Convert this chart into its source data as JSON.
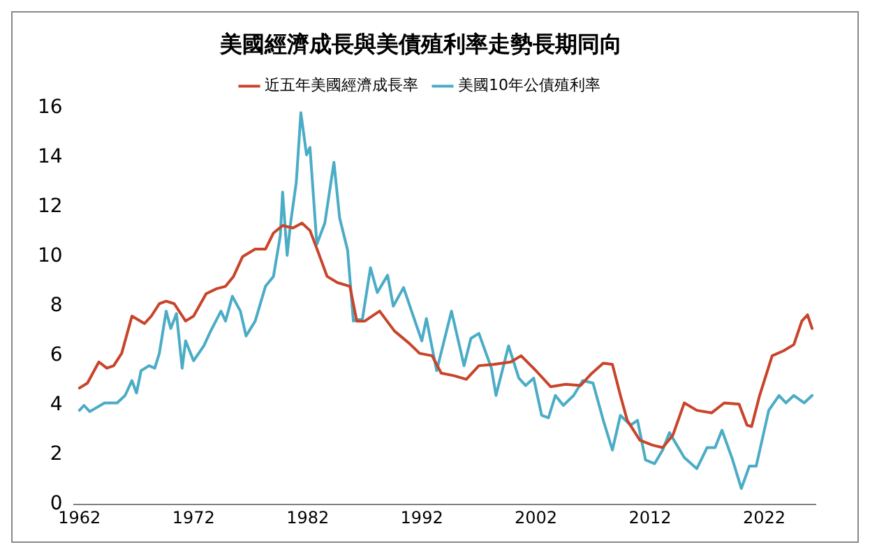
{
  "chart_data": {
    "type": "line",
    "title": "美國經濟成長與美債殖利率走勢長期同向",
    "xlim": [
      1961.5,
      2026.5
    ],
    "xticks": [
      1962,
      1972,
      1982,
      1992,
      2002,
      2012,
      2022
    ],
    "ylim": [
      0,
      16
    ],
    "yticks": [
      0,
      2,
      4,
      6,
      8,
      10,
      12,
      14,
      16
    ],
    "grid": false,
    "legend": "top",
    "marker": "none",
    "line_style": "solid",
    "series": [
      {
        "name": "近五年美國經濟成長率",
        "color": "#c8442a",
        "x": [
          1962,
          1962.7,
          1963.7,
          1964.4,
          1965,
          1965.7,
          1966.6,
          1967.7,
          1968.3,
          1969,
          1969.6,
          1970.3,
          1971.3,
          1972,
          1973.1,
          1974,
          1974.8,
          1975.5,
          1976.3,
          1977.4,
          1978.3,
          1979,
          1979.8,
          1980.7,
          1981.5,
          1982.2,
          1982.9,
          1983.7,
          1984.6,
          1985.7,
          1986.3,
          1987,
          1988.3,
          1989.6,
          1990.9,
          1991.8,
          1992.9,
          1993.7,
          1994.8,
          1995.9,
          1997,
          1998.3,
          1999.8,
          2000.7,
          2002,
          2003.3,
          2004.6,
          2005.9,
          2006.8,
          2007.9,
          2008.7,
          2009.4,
          2010,
          2011.1,
          2012.2,
          2013.1,
          2014,
          2015,
          2016.1,
          2017.4,
          2018.5,
          2019.8,
          2020.5,
          2020.9,
          2021.6,
          2022.7,
          2023.7,
          2024.6,
          2025.3,
          2025.8,
          2026.2
        ],
        "values": [
          4.7,
          4.9,
          5.75,
          5.5,
          5.6,
          6.1,
          7.6,
          7.3,
          7.6,
          8.1,
          8.2,
          8.1,
          7.4,
          7.6,
          8.5,
          8.7,
          8.8,
          9.2,
          10.0,
          10.3,
          10.3,
          10.95,
          11.25,
          11.15,
          11.35,
          11.05,
          10.2,
          9.2,
          8.95,
          8.8,
          7.4,
          7.4,
          7.8,
          7.0,
          6.5,
          6.1,
          6.0,
          5.3,
          5.2,
          5.05,
          5.6,
          5.65,
          5.75,
          6.0,
          5.4,
          4.75,
          4.85,
          4.8,
          5.25,
          5.7,
          5.65,
          4.4,
          3.4,
          2.6,
          2.4,
          2.3,
          2.8,
          4.1,
          3.8,
          3.7,
          4.1,
          4.05,
          3.2,
          3.15,
          4.4,
          6.0,
          6.2,
          6.45,
          7.4,
          7.65,
          7.1
        ]
      },
      {
        "name": "美國10年公債殖利率",
        "color": "#4bacc6",
        "x": [
          1962,
          1962.4,
          1962.9,
          1964.2,
          1965.3,
          1966,
          1966.6,
          1967,
          1967.4,
          1968.1,
          1968.6,
          1969,
          1969.6,
          1970,
          1970.5,
          1971,
          1971.3,
          1972,
          1972.9,
          1973.5,
          1974.4,
          1974.8,
          1975.4,
          1976.1,
          1976.6,
          1977.4,
          1978.3,
          1979,
          1979.6,
          1979.8,
          1980.2,
          1980.5,
          1981,
          1981.4,
          1981.9,
          1982.2,
          1982.8,
          1983.5,
          1984.3,
          1984.8,
          1985.5,
          1986,
          1986.8,
          1987.5,
          1988.1,
          1989,
          1989.5,
          1990.4,
          1991.1,
          1992,
          1992.4,
          1993.3,
          1994.6,
          1995.7,
          1996.3,
          1997,
          1998.1,
          1998.5,
          1999.6,
          2000.5,
          2001.1,
          2001.8,
          2002.5,
          2003.1,
          2003.7,
          2004.4,
          2005.3,
          2006.1,
          2007,
          2007.9,
          2008.7,
          2009.4,
          2010.3,
          2010.9,
          2011.6,
          2012.4,
          2013.1,
          2013.7,
          2015,
          2016.1,
          2017,
          2017.7,
          2018.3,
          2019.2,
          2020,
          2020.7,
          2021.3,
          2022.4,
          2023.3,
          2023.9,
          2024.6,
          2025.5,
          2026.2
        ],
        "values": [
          3.8,
          4.0,
          3.75,
          4.1,
          4.1,
          4.4,
          5.0,
          4.5,
          5.4,
          5.6,
          5.5,
          6.1,
          7.8,
          7.1,
          7.7,
          5.5,
          6.6,
          5.8,
          6.4,
          7.0,
          7.8,
          7.4,
          8.4,
          7.8,
          6.8,
          7.4,
          8.8,
          9.2,
          10.85,
          12.6,
          10.05,
          11.35,
          13.0,
          15.8,
          14.1,
          14.4,
          10.5,
          11.35,
          13.8,
          11.55,
          10.25,
          7.4,
          7.5,
          9.55,
          8.55,
          9.25,
          8.0,
          8.75,
          7.8,
          6.6,
          7.5,
          5.4,
          7.8,
          5.6,
          6.7,
          6.9,
          5.5,
          4.4,
          6.4,
          5.1,
          4.8,
          5.1,
          3.6,
          3.5,
          4.4,
          4.0,
          4.4,
          5.0,
          4.9,
          3.4,
          2.2,
          3.6,
          3.2,
          3.4,
          1.8,
          1.65,
          2.2,
          2.9,
          1.9,
          1.45,
          2.3,
          2.3,
          3.0,
          1.85,
          0.65,
          1.55,
          1.55,
          3.8,
          4.4,
          4.1,
          4.4,
          4.1,
          4.4
        ]
      }
    ]
  }
}
